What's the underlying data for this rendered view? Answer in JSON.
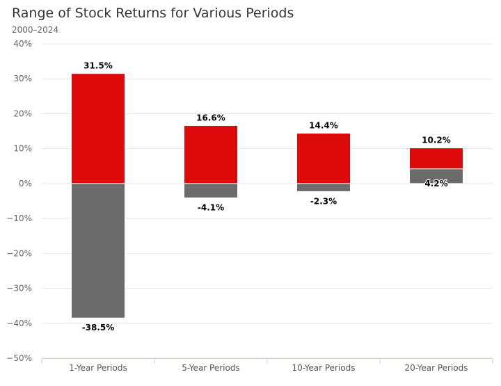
{
  "chart_data": {
    "type": "bar",
    "title": "Range of Stock Returns for Various Periods",
    "subtitle": "2000–2024",
    "categories": [
      "1-Year Periods",
      "5-Year Periods",
      "10-Year Periods",
      "20-Year Periods"
    ],
    "series": [
      {
        "values": [
          31.5,
          16.6,
          14.4,
          10.2
        ],
        "color": "#dc0a0a"
      },
      {
        "values": [
          -38.5,
          -4.1,
          -2.3,
          4.2
        ],
        "color": "#6b6b6b"
      }
    ],
    "labels_high": [
      "31.5%",
      "16.6%",
      "14.4%",
      "10.2%"
    ],
    "labels_low": [
      "-38.5%",
      "-4.1%",
      "-2.3%",
      "4.2%"
    ],
    "yticks": [
      "40%",
      "30%",
      "20%",
      "10%",
      "0%",
      "−10%",
      "−20%",
      "−30%",
      "−40%",
      "−50%"
    ],
    "ylim": [
      -50,
      40
    ],
    "grid": true
  }
}
